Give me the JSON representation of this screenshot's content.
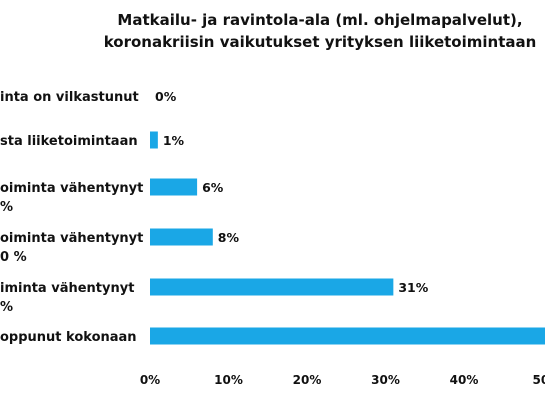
{
  "chart_data": {
    "type": "bar",
    "orientation": "horizontal",
    "title": "Matkailu- ja ravintola-ala (ml. ohjelmapalvelut),",
    "subtitle": "koronakriisin vaikutukset yrityksen liiketoimintaan",
    "categories": [
      {
        "lines": [
          "inta on vilkastunut"
        ]
      },
      {
        "lines": [
          "sta liiketoimintaan"
        ]
      },
      {
        "lines": [
          "oiminta vähentynyt",
          "%"
        ]
      },
      {
        "lines": [
          "oiminta vähentynyt",
          "0 %"
        ]
      },
      {
        "lines": [
          "iminta vähentynyt",
          "%"
        ]
      },
      {
        "lines": [
          "oppunut kokonaan"
        ]
      }
    ],
    "values": [
      0,
      1,
      6,
      8,
      31,
      52
    ],
    "value_labels": [
      "0%",
      "1%",
      "6%",
      "8%",
      "31%",
      ""
    ],
    "xlim": [
      0,
      50
    ],
    "xticks": [
      0,
      10,
      20,
      30,
      40,
      50
    ],
    "xtick_labels": [
      "0%",
      "10%",
      "20%",
      "30%",
      "40%",
      "50"
    ],
    "bar_color": "#1aa7e6",
    "grid": false,
    "legend": "none"
  }
}
